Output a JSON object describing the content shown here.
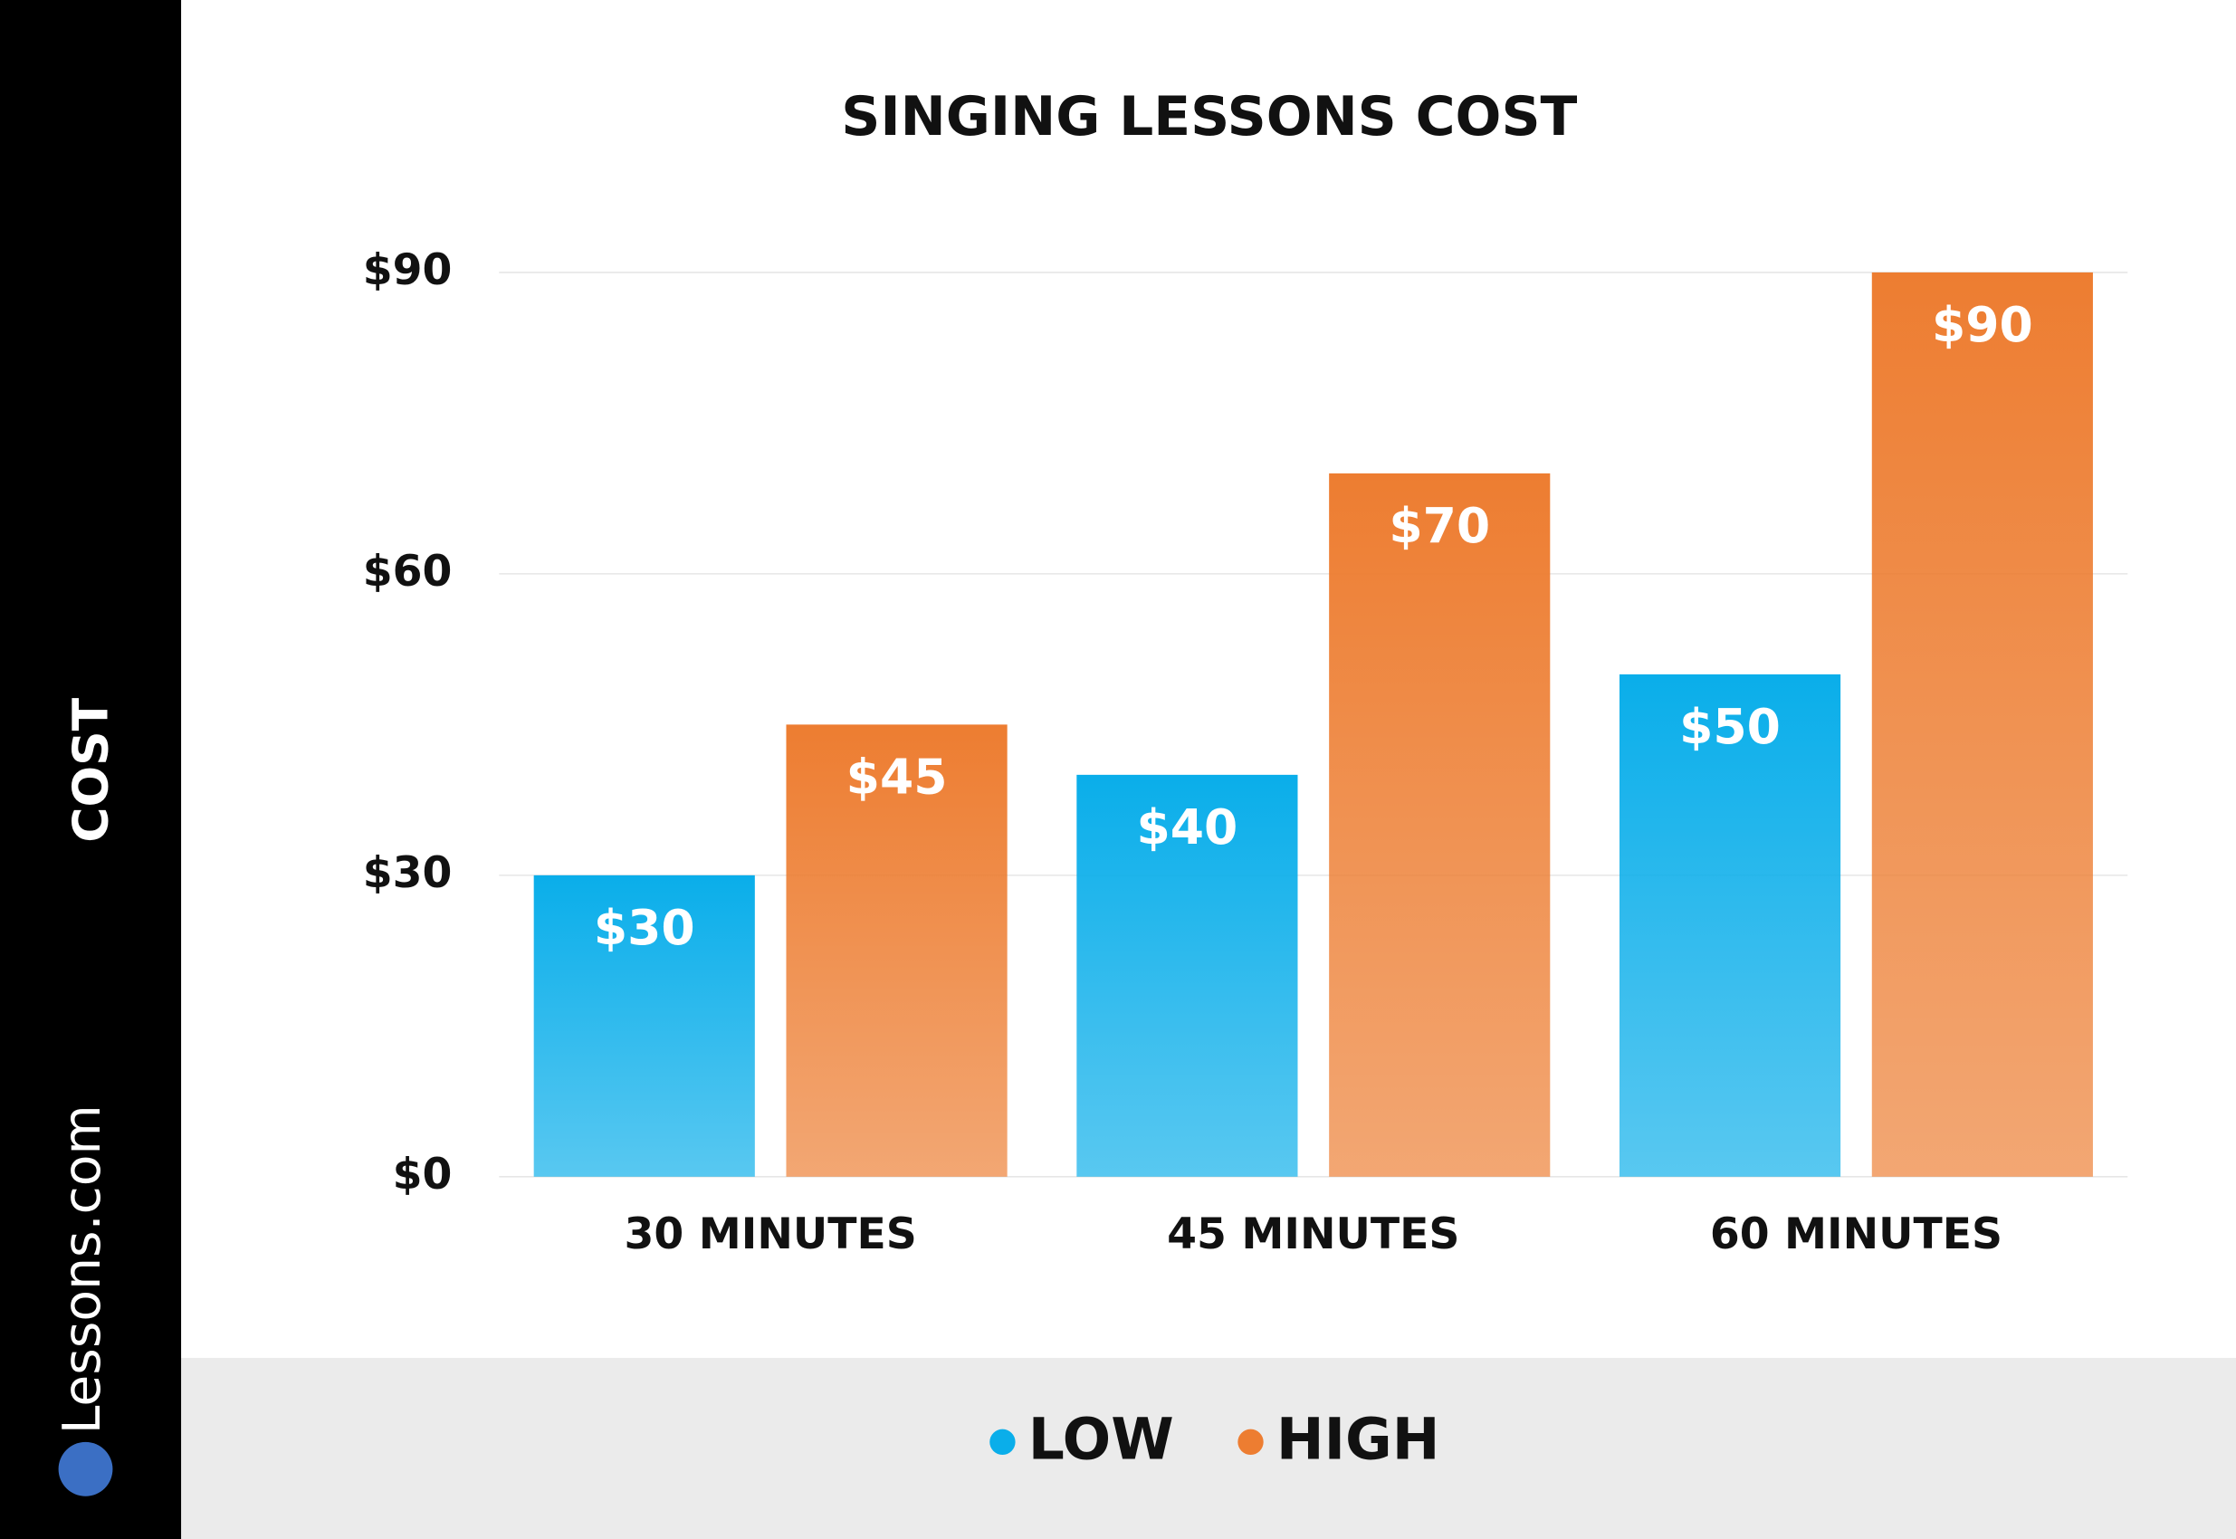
{
  "brand": "Lessons.com",
  "chart_data": {
    "type": "bar",
    "title": "SINGING LESSONS COST",
    "y_label": "COST",
    "categories": [
      "30 MINUTES",
      "45 MINUTES",
      "60 MINUTES"
    ],
    "series": [
      {
        "name": "LOW",
        "color": "#0aaeea",
        "values": [
          30,
          40,
          50
        ],
        "value_labels": [
          "$30",
          "$40",
          "$50"
        ]
      },
      {
        "name": "HIGH",
        "color": "#ed7d31",
        "values": [
          45,
          70,
          90
        ],
        "value_labels": [
          "$45",
          "$70",
          "$90"
        ]
      }
    ],
    "ylim": [
      0,
      90
    ],
    "yticks": [
      {
        "value": 0,
        "label": "$0"
      },
      {
        "value": 30,
        "label": "$30"
      },
      {
        "value": 60,
        "label": "$60"
      },
      {
        "value": 90,
        "label": "$90"
      }
    ],
    "grid": true
  }
}
